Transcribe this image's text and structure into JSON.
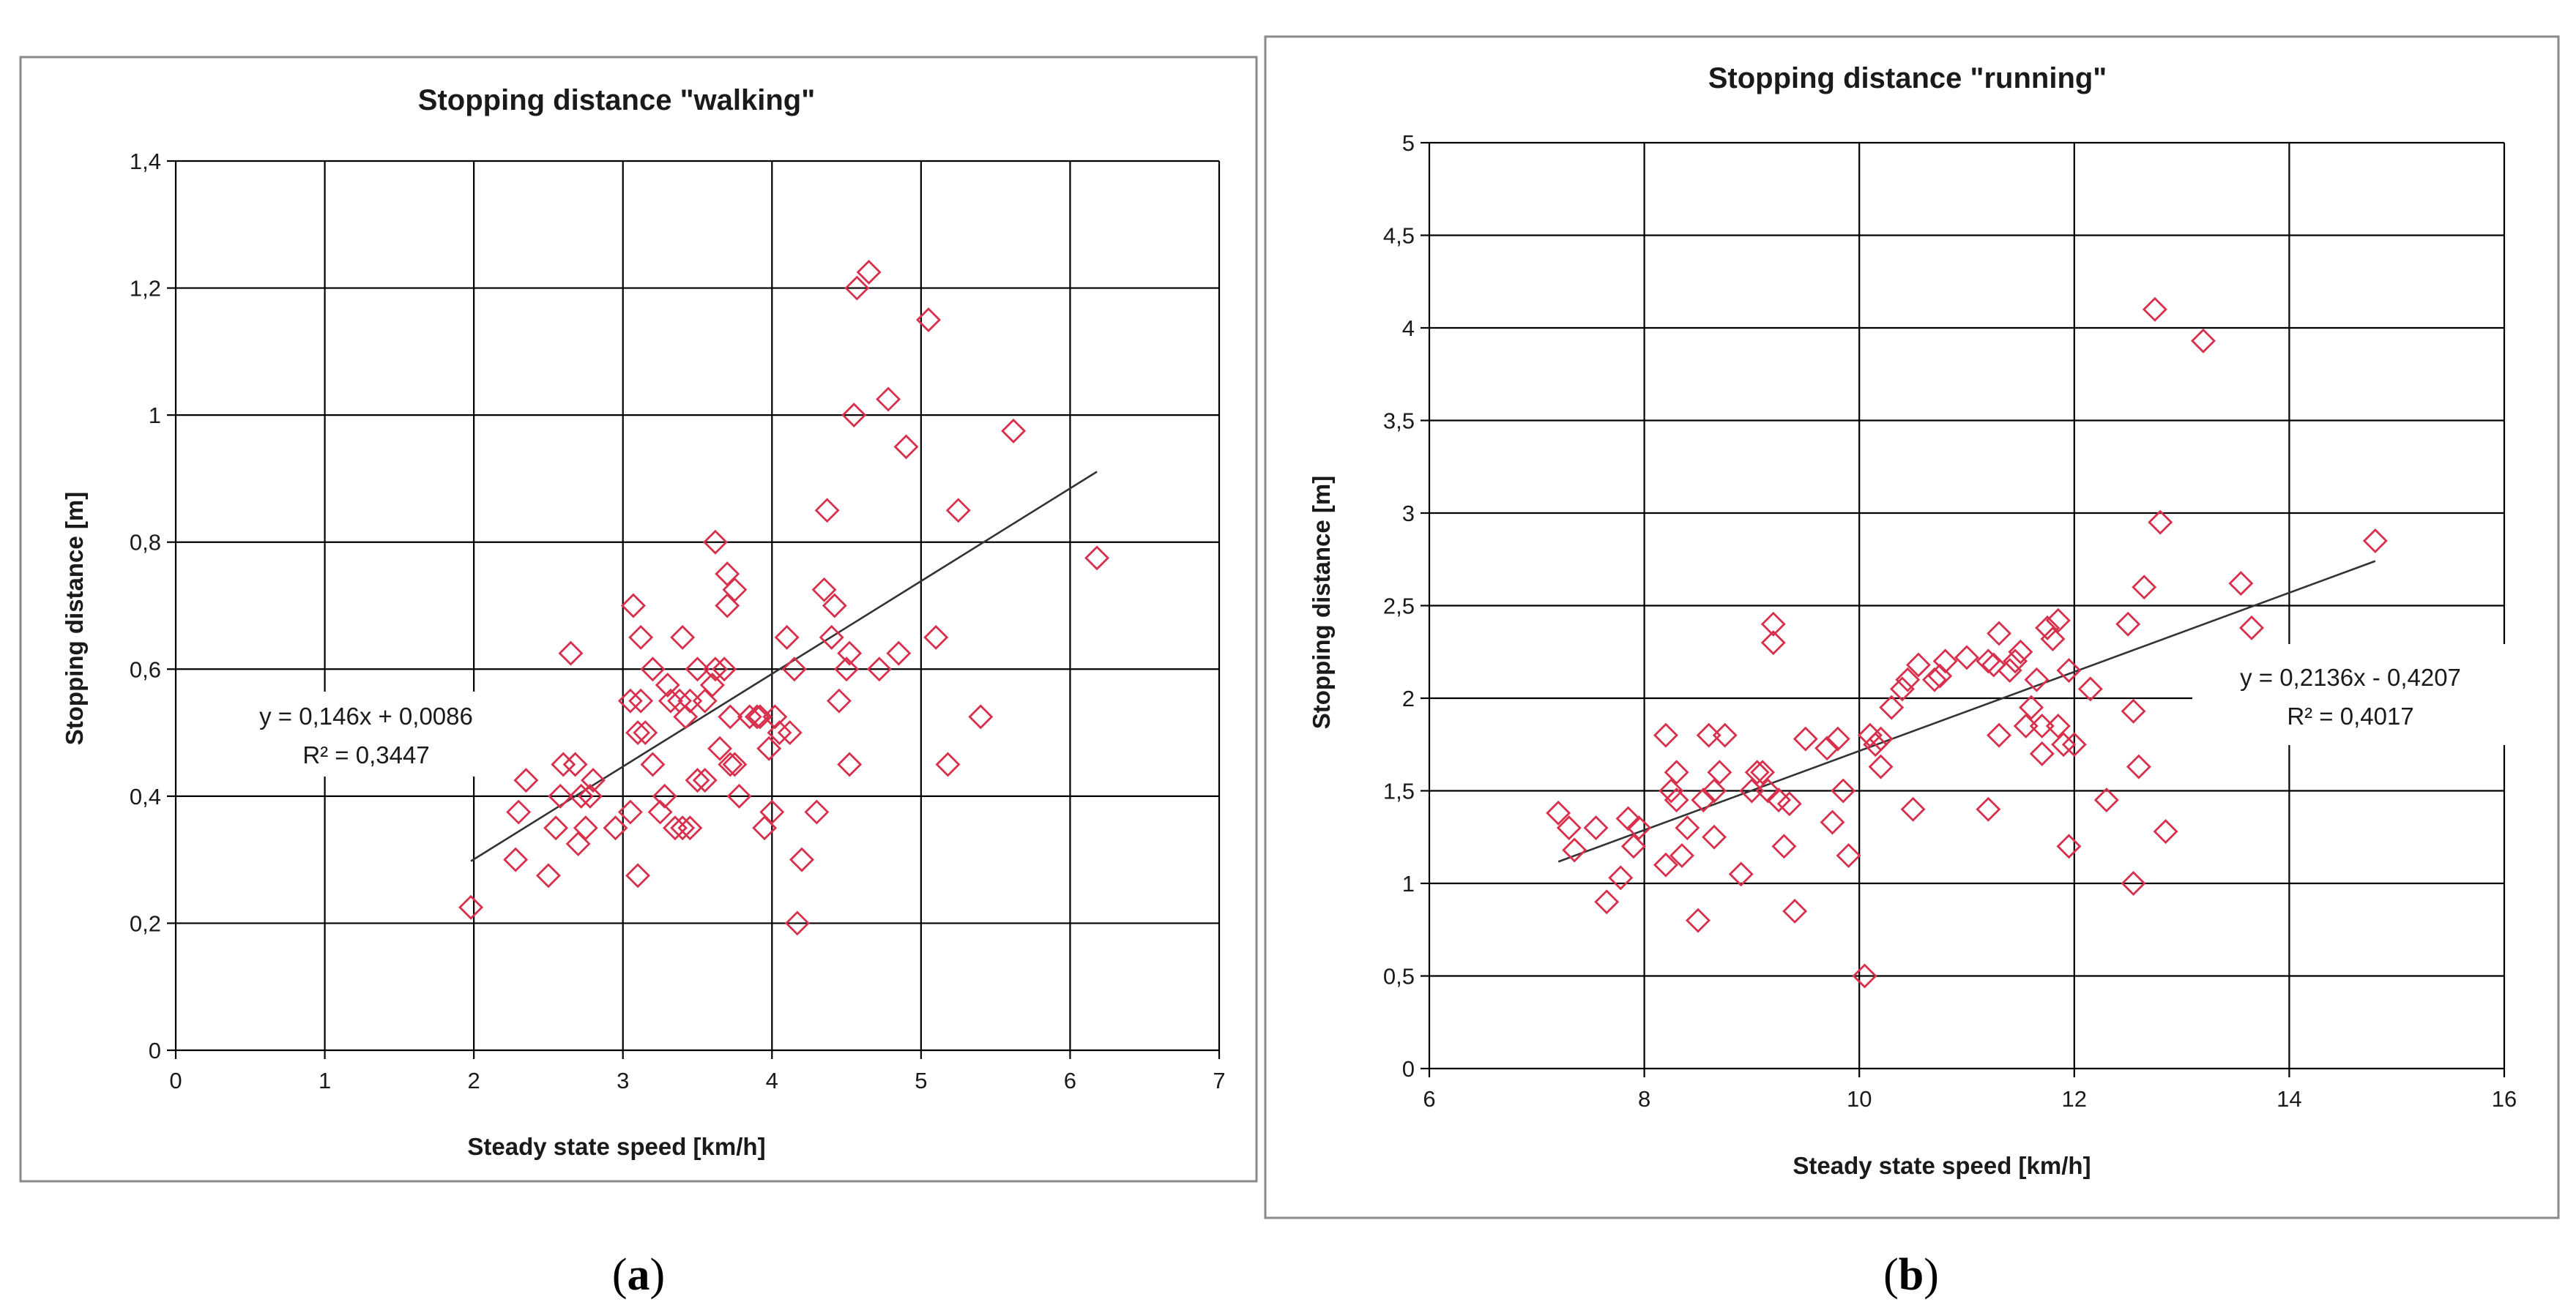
{
  "captions": {
    "left_letter": "a",
    "right_letter": "b"
  },
  "colors": {
    "marker": "#d8304c",
    "grid": "#000000",
    "trend": "#333333",
    "frame": "#888888"
  },
  "chart_data": [
    {
      "type": "scatter",
      "title": "Stopping distance \"walking\"",
      "xlabel": "Steady state speed [km/h]",
      "ylabel": "Stopping distance [m]",
      "xlim": [
        0,
        7
      ],
      "ylim": [
        0,
        1.4
      ],
      "xticks": [
        0,
        1,
        2,
        3,
        4,
        5,
        6,
        7
      ],
      "xtick_labels": [
        "0",
        "1",
        "2",
        "3",
        "4",
        "5",
        "6",
        "7"
      ],
      "yticks": [
        0,
        0.2,
        0.4,
        0.6,
        0.8,
        1,
        1.2,
        1.4
      ],
      "ytick_labels": [
        "0",
        "0,2",
        "0,4",
        "0,6",
        "0,8",
        "1",
        "1,2",
        "1,4"
      ],
      "grid": true,
      "marker": "diamond-open",
      "trendline": {
        "slope": 0.146,
        "intercept": 0.0086,
        "x_range": [
          1.98,
          6.18
        ]
      },
      "equation": "y = 0,146x + 0,0086",
      "r2": "R² = 0,3447",
      "x": [
        1.98,
        2.28,
        2.3,
        2.35,
        2.5,
        2.55,
        2.58,
        2.6,
        2.65,
        2.68,
        2.7,
        2.72,
        2.75,
        2.78,
        2.8,
        2.95,
        3.05,
        3.05,
        3.07,
        3.1,
        3.1,
        3.12,
        3.12,
        3.15,
        3.2,
        3.2,
        3.25,
        3.28,
        3.3,
        3.32,
        3.35,
        3.38,
        3.4,
        3.4,
        3.42,
        3.45,
        3.45,
        3.5,
        3.5,
        3.55,
        3.55,
        3.6,
        3.62,
        3.62,
        3.65,
        3.68,
        3.7,
        3.7,
        3.72,
        3.72,
        3.75,
        3.75,
        3.78,
        3.85,
        3.9,
        3.92,
        3.95,
        3.98,
        4.0,
        4.02,
        4.05,
        4.1,
        4.12,
        4.15,
        4.17,
        4.2,
        4.3,
        4.35,
        4.37,
        4.4,
        4.42,
        4.45,
        4.5,
        4.52,
        4.52,
        4.55,
        4.57,
        4.65,
        4.72,
        4.78,
        4.85,
        4.9,
        5.05,
        5.1,
        5.18,
        5.25,
        5.4,
        5.62,
        6.18
      ],
      "y": [
        0.225,
        0.3,
        0.375,
        0.425,
        0.275,
        0.35,
        0.4,
        0.45,
        0.625,
        0.45,
        0.325,
        0.4,
        0.35,
        0.4,
        0.425,
        0.35,
        0.375,
        0.55,
        0.7,
        0.5,
        0.275,
        0.55,
        0.65,
        0.5,
        0.6,
        0.45,
        0.375,
        0.4,
        0.575,
        0.55,
        0.35,
        0.55,
        0.35,
        0.65,
        0.525,
        0.35,
        0.55,
        0.6,
        0.425,
        0.425,
        0.55,
        0.575,
        0.6,
        0.8,
        0.475,
        0.6,
        0.7,
        0.75,
        0.45,
        0.525,
        0.725,
        0.45,
        0.4,
        0.525,
        0.525,
        0.525,
        0.35,
        0.475,
        0.375,
        0.525,
        0.5,
        0.65,
        0.5,
        0.6,
        0.2,
        0.3,
        0.375,
        0.725,
        0.85,
        0.65,
        0.7,
        0.55,
        0.6,
        0.45,
        0.625,
        1.0,
        1.2,
        1.225,
        0.6,
        1.025,
        0.625,
        0.95,
        1.15,
        0.65,
        0.45,
        0.85,
        0.525,
        0.975,
        0.775
      ]
    },
    {
      "type": "scatter",
      "title": "Stopping distance \"running\"",
      "xlabel": "Steady state speed [km/h]",
      "ylabel": "Stopping distance [m]",
      "xlim": [
        6,
        16
      ],
      "ylim": [
        0,
        5
      ],
      "xticks": [
        6,
        8,
        10,
        12,
        14,
        16
      ],
      "xtick_labels": [
        "6",
        "8",
        "10",
        "12",
        "14",
        "16"
      ],
      "yticks": [
        0,
        0.5,
        1,
        1.5,
        2,
        2.5,
        3,
        3.5,
        4,
        4.5,
        5
      ],
      "ytick_labels": [
        "0",
        "0,5",
        "1",
        "1,5",
        "2",
        "2,5",
        "3",
        "3,5",
        "4",
        "4,5",
        "5"
      ],
      "grid": true,
      "marker": "diamond-open",
      "trendline": {
        "slope": 0.2136,
        "intercept": -0.4207,
        "x_range": [
          7.2,
          14.8
        ]
      },
      "equation": "y = 0,2136x - 0,4207",
      "r2": "R² = 0,4017",
      "x": [
        7.2,
        7.3,
        7.35,
        7.55,
        7.65,
        7.78,
        7.85,
        7.9,
        7.95,
        8.2,
        8.2,
        8.25,
        8.3,
        8.3,
        8.35,
        8.4,
        8.5,
        8.55,
        8.6,
        8.65,
        8.65,
        8.7,
        8.75,
        8.9,
        9.0,
        9.05,
        9.1,
        9.15,
        9.2,
        9.2,
        9.25,
        9.3,
        9.35,
        9.4,
        9.5,
        9.7,
        9.75,
        9.8,
        9.85,
        9.9,
        10.05,
        10.1,
        10.15,
        10.2,
        10.2,
        10.3,
        10.4,
        10.45,
        10.5,
        10.55,
        10.7,
        10.75,
        10.8,
        11.0,
        11.2,
        11.2,
        11.25,
        11.3,
        11.3,
        11.4,
        11.45,
        11.5,
        11.55,
        11.6,
        11.65,
        11.7,
        11.7,
        11.75,
        11.8,
        11.85,
        11.85,
        11.9,
        11.95,
        11.95,
        12.0,
        12.3,
        12.5,
        12.55,
        12.55,
        12.6,
        12.65,
        12.75,
        12.8,
        12.85,
        13.2,
        13.55,
        13.65,
        14.8,
        12.15
      ],
      "y": [
        1.38,
        1.3,
        1.18,
        1.3,
        0.9,
        1.03,
        1.35,
        1.2,
        1.3,
        1.8,
        1.1,
        1.5,
        1.45,
        1.6,
        1.15,
        1.3,
        0.8,
        1.45,
        1.8,
        1.5,
        1.25,
        1.6,
        1.8,
        1.05,
        1.5,
        1.6,
        1.6,
        1.5,
        2.3,
        2.4,
        1.45,
        1.2,
        1.43,
        0.85,
        1.78,
        1.73,
        1.33,
        1.78,
        1.5,
        1.15,
        0.5,
        1.8,
        1.75,
        1.63,
        1.78,
        1.95,
        2.05,
        2.1,
        1.4,
        2.18,
        2.1,
        2.12,
        2.2,
        2.22,
        2.2,
        1.4,
        2.18,
        2.35,
        1.8,
        2.15,
        2.2,
        2.25,
        1.85,
        1.95,
        2.1,
        1.7,
        1.85,
        2.38,
        2.32,
        2.42,
        1.85,
        1.75,
        2.15,
        1.2,
        1.75,
        1.45,
        2.4,
        1.0,
        1.93,
        1.63,
        2.6,
        4.1,
        2.95,
        1.28,
        3.93,
        2.62,
        2.38,
        2.85,
        2.05
      ]
    }
  ]
}
